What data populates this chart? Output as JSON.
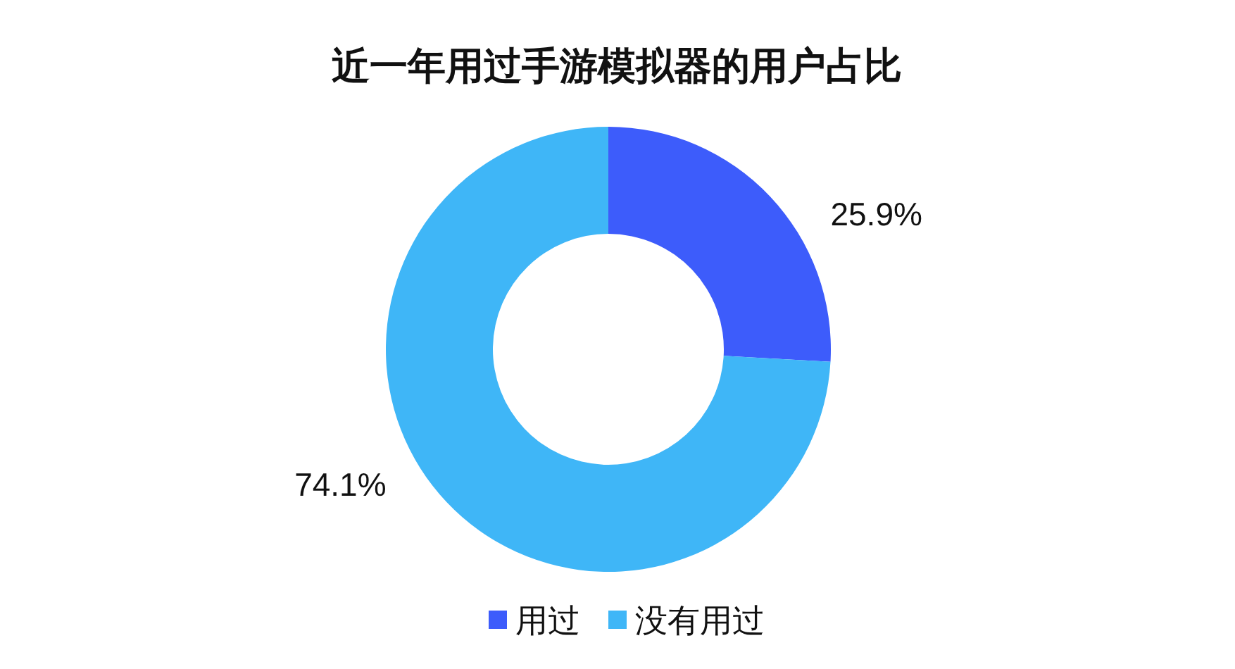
{
  "chart_data": {
    "type": "donut",
    "title": "近一年用过手游模拟器的用户占比",
    "categories": [
      "用过",
      "没有用过"
    ],
    "values": [
      25.9,
      74.1
    ],
    "colors": [
      "#3d5cfb",
      "#3fb6f7"
    ],
    "value_labels": [
      "25.9%",
      "74.1%"
    ],
    "legend": "bottom"
  }
}
